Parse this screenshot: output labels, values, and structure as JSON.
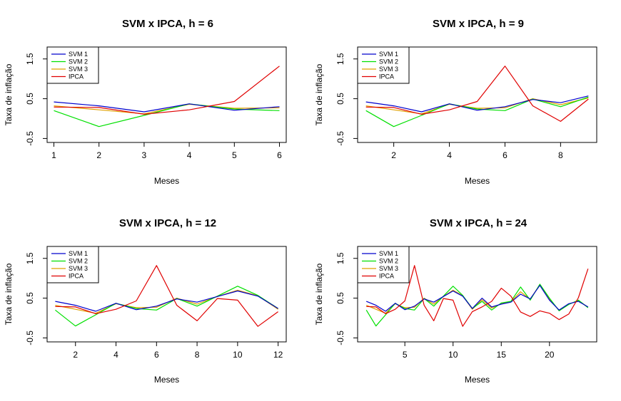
{
  "chart_data": [
    {
      "type": "line",
      "title": "SVM x IPCA, h = 6",
      "xlabel": "Meses",
      "ylabel": "Taxa de inflação",
      "xlim": [
        0.85,
        6.15
      ],
      "ylim": [
        -0.6,
        1.8
      ],
      "xticks": [
        "1",
        "2",
        "3",
        "4",
        "5",
        "6"
      ],
      "yticks": [
        "-0.5",
        "0.5",
        "1.5"
      ],
      "legend_position": "top-left",
      "x": [
        1,
        2,
        3,
        4,
        5,
        6
      ],
      "series": [
        {
          "name": "SVM 1",
          "color": "#0000CD",
          "values": [
            0.42,
            0.32,
            0.17,
            0.37,
            0.21,
            0.3
          ]
        },
        {
          "name": "SVM 2",
          "color": "#00E000",
          "values": [
            0.2,
            -0.2,
            0.08,
            0.37,
            0.24,
            0.2
          ]
        },
        {
          "name": "SVM 3",
          "color": "#E0A000",
          "values": [
            0.32,
            0.22,
            0.12,
            0.36,
            0.26,
            0.27
          ]
        },
        {
          "name": "IPCA",
          "color": "#E00000",
          "values": [
            0.29,
            0.28,
            0.11,
            0.22,
            0.43,
            1.32
          ]
        }
      ]
    },
    {
      "type": "line",
      "title": "SVM x IPCA, h = 9",
      "xlabel": "Meses",
      "ylabel": "Taxa de inflação",
      "xlim": [
        0.7,
        9.3
      ],
      "ylim": [
        -0.6,
        1.8
      ],
      "xticks": [
        "2",
        "4",
        "6",
        "8"
      ],
      "yticks": [
        "-0.5",
        "0.5",
        "1.5"
      ],
      "legend_position": "top-left",
      "x": [
        1,
        2,
        3,
        4,
        5,
        6,
        7,
        8,
        9
      ],
      "series": [
        {
          "name": "SVM 1",
          "color": "#0000CD",
          "values": [
            0.42,
            0.32,
            0.17,
            0.37,
            0.21,
            0.3,
            0.48,
            0.4,
            0.57
          ]
        },
        {
          "name": "SVM 2",
          "color": "#00E000",
          "values": [
            0.2,
            -0.2,
            0.08,
            0.37,
            0.24,
            0.2,
            0.49,
            0.3,
            0.54
          ]
        },
        {
          "name": "SVM 3",
          "color": "#E0A000",
          "values": [
            0.32,
            0.22,
            0.12,
            0.36,
            0.26,
            0.27,
            0.5,
            0.35,
            0.52
          ]
        },
        {
          "name": "IPCA",
          "color": "#E00000",
          "values": [
            0.29,
            0.28,
            0.11,
            0.22,
            0.43,
            1.32,
            0.32,
            -0.07,
            0.49
          ]
        }
      ]
    },
    {
      "type": "line",
      "title": "SVM x IPCA, h = 12",
      "xlabel": "Meses",
      "ylabel": "Taxa de inflação",
      "xlim": [
        0.6,
        12.4
      ],
      "ylim": [
        -0.6,
        1.8
      ],
      "xticks": [
        "2",
        "4",
        "6",
        "8",
        "10",
        "12"
      ],
      "yticks": [
        "-0.5",
        "0.5",
        "1.5"
      ],
      "legend_position": "top-left",
      "x": [
        1,
        2,
        3,
        4,
        5,
        6,
        7,
        8,
        9,
        10,
        11,
        12
      ],
      "series": [
        {
          "name": "SVM 1",
          "color": "#0000CD",
          "values": [
            0.42,
            0.32,
            0.17,
            0.37,
            0.21,
            0.3,
            0.48,
            0.4,
            0.54,
            0.68,
            0.55,
            0.24
          ]
        },
        {
          "name": "SVM 2",
          "color": "#00E000",
          "values": [
            0.2,
            -0.2,
            0.08,
            0.37,
            0.24,
            0.2,
            0.49,
            0.3,
            0.55,
            0.8,
            0.57,
            0.24
          ]
        },
        {
          "name": "SVM 3",
          "color": "#E0A000",
          "values": [
            0.32,
            0.22,
            0.12,
            0.36,
            0.26,
            0.27,
            0.5,
            0.35,
            0.54,
            0.7,
            0.56,
            0.22
          ]
        },
        {
          "name": "IPCA",
          "color": "#E00000",
          "values": [
            0.29,
            0.28,
            0.11,
            0.22,
            0.43,
            1.32,
            0.32,
            -0.07,
            0.49,
            0.45,
            -0.21,
            0.16
          ]
        }
      ]
    },
    {
      "type": "line",
      "title": "SVM x IPCA, h = 24",
      "xlabel": "Meses",
      "ylabel": "Taxa de inflação",
      "xlim": [
        0.1,
        24.9
      ],
      "ylim": [
        -0.6,
        1.8
      ],
      "xticks": [
        "5",
        "10",
        "15",
        "20"
      ],
      "yticks": [
        "-0.5",
        "0.5",
        "1.5"
      ],
      "legend_position": "top-left",
      "x": [
        1,
        2,
        3,
        4,
        5,
        6,
        7,
        8,
        9,
        10,
        11,
        12,
        13,
        14,
        15,
        16,
        17,
        18,
        19,
        20,
        21,
        22,
        23,
        24
      ],
      "series": [
        {
          "name": "SVM 1",
          "color": "#0000CD",
          "values": [
            0.42,
            0.32,
            0.17,
            0.37,
            0.21,
            0.3,
            0.48,
            0.4,
            0.54,
            0.68,
            0.55,
            0.24,
            0.5,
            0.28,
            0.35,
            0.4,
            0.6,
            0.48,
            0.82,
            0.45,
            0.2,
            0.36,
            0.42,
            0.28
          ]
        },
        {
          "name": "SVM 2",
          "color": "#00E000",
          "values": [
            0.2,
            -0.2,
            0.08,
            0.37,
            0.24,
            0.2,
            0.49,
            0.3,
            0.55,
            0.8,
            0.57,
            0.24,
            0.42,
            0.2,
            0.38,
            0.42,
            0.78,
            0.45,
            0.85,
            0.5,
            0.18,
            0.34,
            0.45,
            0.26
          ]
        },
        {
          "name": "SVM 3",
          "color": "#E0A000",
          "values": [
            0.32,
            0.22,
            0.12,
            0.36,
            0.26,
            0.27,
            0.5,
            0.35,
            0.54,
            0.7,
            0.56,
            0.22,
            0.46,
            0.25,
            0.36,
            0.41,
            0.66,
            0.47,
            0.84,
            0.47,
            0.19,
            0.35,
            0.44,
            0.27
          ]
        },
        {
          "name": "IPCA",
          "color": "#E00000",
          "values": [
            0.29,
            0.28,
            0.11,
            0.22,
            0.43,
            1.32,
            0.32,
            -0.07,
            0.49,
            0.45,
            -0.21,
            0.16,
            0.28,
            0.42,
            0.75,
            0.55,
            0.15,
            0.04,
            0.18,
            0.12,
            -0.04,
            0.1,
            0.51,
            1.24
          ]
        }
      ]
    }
  ]
}
